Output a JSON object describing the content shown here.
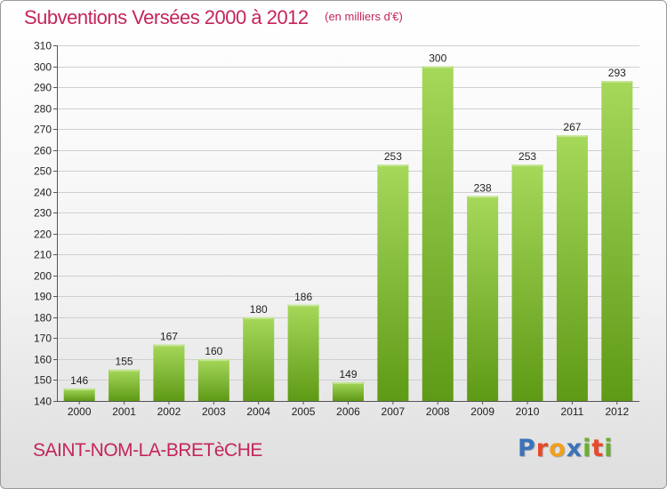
{
  "header": {
    "title": "Subventions Versées 2000 à 2012",
    "unit_note": "(en milliers d'€)"
  },
  "footer": {
    "commune": "SAINT-NOM-LA-BRETèCHE",
    "brand": "Proxiti",
    "brand_letters": [
      {
        "char": "P",
        "color": "#3b73b9"
      },
      {
        "char": "r",
        "color": "#e8492b"
      },
      {
        "char": "o",
        "color": "#f2a01c"
      },
      {
        "char": "x",
        "color": "#3b73b9"
      },
      {
        "char": "i",
        "color": "#6cae2f"
      },
      {
        "char": "t",
        "color": "#e8492b"
      },
      {
        "char": "i",
        "color": "#6cae2f"
      }
    ]
  },
  "colors": {
    "accent": "#c4255a",
    "bar_top": "#a6d85a",
    "bar_bottom": "#5e9a16",
    "grid": "#cfcfcf"
  },
  "chart_data": {
    "type": "bar",
    "categories": [
      "2000",
      "2001",
      "2002",
      "2003",
      "2004",
      "2005",
      "2006",
      "2007",
      "2008",
      "2009",
      "2010",
      "2011",
      "2012"
    ],
    "values": [
      146,
      155,
      167,
      160,
      180,
      186,
      149,
      253,
      300,
      238,
      253,
      267,
      293
    ],
    "ylim": [
      140,
      310
    ],
    "yticks": [
      140,
      150,
      160,
      170,
      180,
      190,
      200,
      210,
      220,
      230,
      240,
      250,
      260,
      270,
      280,
      290,
      300,
      310
    ],
    "grid": true,
    "data_labels": true
  }
}
